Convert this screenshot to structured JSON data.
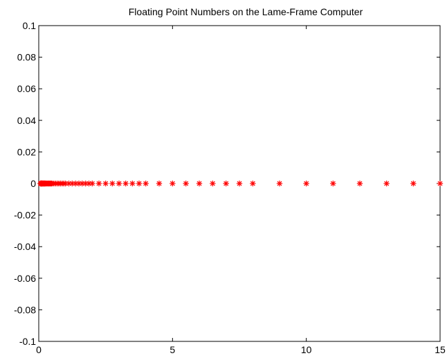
{
  "chart_data": {
    "type": "scatter",
    "title": "Floating Point Numbers on the Lame-Frame Computer",
    "xlabel": "",
    "ylabel": "",
    "xlim": [
      0,
      15
    ],
    "ylim": [
      -0.1,
      0.1
    ],
    "x_ticks": [
      0,
      5,
      10,
      15
    ],
    "x_tick_labels": [
      "0",
      "5",
      "10",
      "15"
    ],
    "y_ticks": [
      -0.1,
      -0.08,
      -0.06,
      -0.04,
      -0.02,
      0,
      0.02,
      0.04,
      0.06,
      0.08,
      0.1
    ],
    "y_tick_labels": [
      "-0.1",
      "-0.08",
      "-0.06",
      "-0.04",
      "-0.02",
      "0",
      "0.02",
      "0.04",
      "0.06",
      "0.08",
      "0.1"
    ],
    "grid": false,
    "marker": "asterisk",
    "marker_color": "#ff0000",
    "series": [
      {
        "x": [
          0.0625,
          0.0703125,
          0.078125,
          0.0859375,
          0.09375,
          0.1015625,
          0.109375,
          0.1171875,
          0.125,
          0.140625,
          0.15625,
          0.171875,
          0.1875,
          0.203125,
          0.21875,
          0.234375,
          0.25,
          0.28125,
          0.3125,
          0.34375,
          0.375,
          0.40625,
          0.4375,
          0.46875,
          0.5,
          0.5625,
          0.625,
          0.6875,
          0.75,
          0.8125,
          0.875,
          0.9375,
          1,
          1.125,
          1.25,
          1.375,
          1.5,
          1.625,
          1.75,
          1.875,
          2,
          2.25,
          2.5,
          2.75,
          3,
          3.25,
          3.5,
          3.75,
          4,
          4.5,
          5,
          5.5,
          6,
          6.5,
          7,
          7.5,
          8,
          9,
          10,
          11,
          12,
          13,
          14,
          15
        ],
        "y_value": 0
      }
    ]
  }
}
